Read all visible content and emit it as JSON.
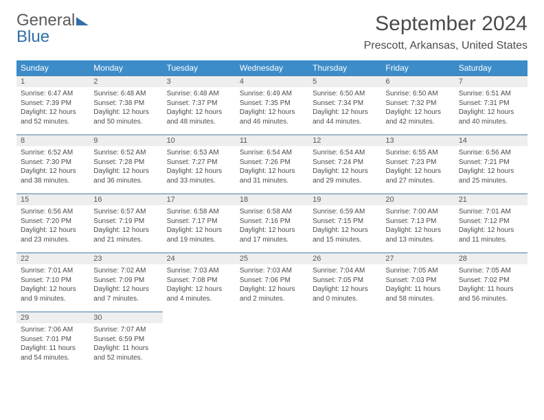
{
  "logo": {
    "line1": "General",
    "line2": "Blue"
  },
  "title": "September 2024",
  "location": "Prescott, Arkansas, United States",
  "dow": [
    "Sunday",
    "Monday",
    "Tuesday",
    "Wednesday",
    "Thursday",
    "Friday",
    "Saturday"
  ],
  "colors": {
    "header_bg": "#3c8cc9",
    "header_fg": "#ffffff",
    "daynum_bg": "#eeeeee",
    "cell_border": "#4a7ba5",
    "text": "#4a4a4a",
    "logo_gray": "#5a5a5a",
    "logo_blue": "#2f6fa7"
  },
  "weeks": [
    [
      {
        "n": "1",
        "sr": "6:47 AM",
        "ss": "7:39 PM",
        "dl": "12 hours and 52 minutes."
      },
      {
        "n": "2",
        "sr": "6:48 AM",
        "ss": "7:38 PM",
        "dl": "12 hours and 50 minutes."
      },
      {
        "n": "3",
        "sr": "6:48 AM",
        "ss": "7:37 PM",
        "dl": "12 hours and 48 minutes."
      },
      {
        "n": "4",
        "sr": "6:49 AM",
        "ss": "7:35 PM",
        "dl": "12 hours and 46 minutes."
      },
      {
        "n": "5",
        "sr": "6:50 AM",
        "ss": "7:34 PM",
        "dl": "12 hours and 44 minutes."
      },
      {
        "n": "6",
        "sr": "6:50 AM",
        "ss": "7:32 PM",
        "dl": "12 hours and 42 minutes."
      },
      {
        "n": "7",
        "sr": "6:51 AM",
        "ss": "7:31 PM",
        "dl": "12 hours and 40 minutes."
      }
    ],
    [
      {
        "n": "8",
        "sr": "6:52 AM",
        "ss": "7:30 PM",
        "dl": "12 hours and 38 minutes."
      },
      {
        "n": "9",
        "sr": "6:52 AM",
        "ss": "7:28 PM",
        "dl": "12 hours and 36 minutes."
      },
      {
        "n": "10",
        "sr": "6:53 AM",
        "ss": "7:27 PM",
        "dl": "12 hours and 33 minutes."
      },
      {
        "n": "11",
        "sr": "6:54 AM",
        "ss": "7:26 PM",
        "dl": "12 hours and 31 minutes."
      },
      {
        "n": "12",
        "sr": "6:54 AM",
        "ss": "7:24 PM",
        "dl": "12 hours and 29 minutes."
      },
      {
        "n": "13",
        "sr": "6:55 AM",
        "ss": "7:23 PM",
        "dl": "12 hours and 27 minutes."
      },
      {
        "n": "14",
        "sr": "6:56 AM",
        "ss": "7:21 PM",
        "dl": "12 hours and 25 minutes."
      }
    ],
    [
      {
        "n": "15",
        "sr": "6:56 AM",
        "ss": "7:20 PM",
        "dl": "12 hours and 23 minutes."
      },
      {
        "n": "16",
        "sr": "6:57 AM",
        "ss": "7:19 PM",
        "dl": "12 hours and 21 minutes."
      },
      {
        "n": "17",
        "sr": "6:58 AM",
        "ss": "7:17 PM",
        "dl": "12 hours and 19 minutes."
      },
      {
        "n": "18",
        "sr": "6:58 AM",
        "ss": "7:16 PM",
        "dl": "12 hours and 17 minutes."
      },
      {
        "n": "19",
        "sr": "6:59 AM",
        "ss": "7:15 PM",
        "dl": "12 hours and 15 minutes."
      },
      {
        "n": "20",
        "sr": "7:00 AM",
        "ss": "7:13 PM",
        "dl": "12 hours and 13 minutes."
      },
      {
        "n": "21",
        "sr": "7:01 AM",
        "ss": "7:12 PM",
        "dl": "12 hours and 11 minutes."
      }
    ],
    [
      {
        "n": "22",
        "sr": "7:01 AM",
        "ss": "7:10 PM",
        "dl": "12 hours and 9 minutes."
      },
      {
        "n": "23",
        "sr": "7:02 AM",
        "ss": "7:09 PM",
        "dl": "12 hours and 7 minutes."
      },
      {
        "n": "24",
        "sr": "7:03 AM",
        "ss": "7:08 PM",
        "dl": "12 hours and 4 minutes."
      },
      {
        "n": "25",
        "sr": "7:03 AM",
        "ss": "7:06 PM",
        "dl": "12 hours and 2 minutes."
      },
      {
        "n": "26",
        "sr": "7:04 AM",
        "ss": "7:05 PM",
        "dl": "12 hours and 0 minutes."
      },
      {
        "n": "27",
        "sr": "7:05 AM",
        "ss": "7:03 PM",
        "dl": "11 hours and 58 minutes."
      },
      {
        "n": "28",
        "sr": "7:05 AM",
        "ss": "7:02 PM",
        "dl": "11 hours and 56 minutes."
      }
    ],
    [
      {
        "n": "29",
        "sr": "7:06 AM",
        "ss": "7:01 PM",
        "dl": "11 hours and 54 minutes."
      },
      {
        "n": "30",
        "sr": "7:07 AM",
        "ss": "6:59 PM",
        "dl": "11 hours and 52 minutes."
      },
      null,
      null,
      null,
      null,
      null
    ]
  ]
}
